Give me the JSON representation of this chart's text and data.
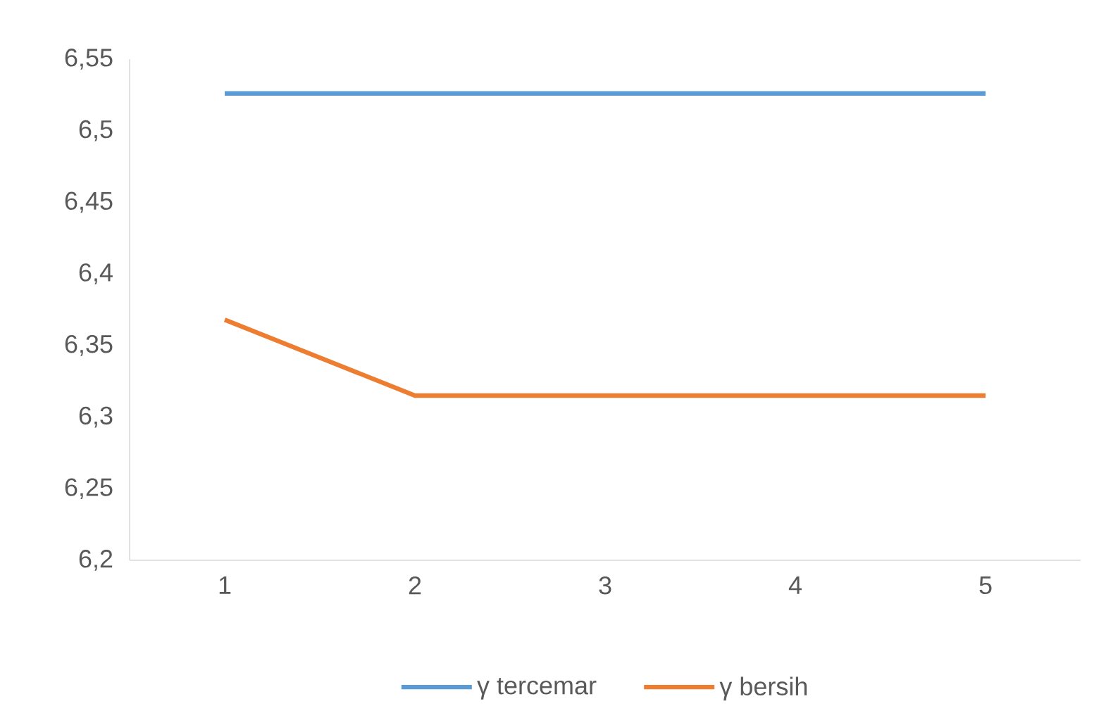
{
  "chart_data": {
    "type": "line",
    "categories": [
      "1",
      "2",
      "3",
      "4",
      "5"
    ],
    "series": [
      {
        "name": "γ tercemar",
        "color": "#5b9bd5",
        "values": [
          6.526,
          6.526,
          6.526,
          6.526,
          6.526
        ]
      },
      {
        "name": "γ bersih",
        "color": "#ed7d31",
        "values": [
          6.368,
          6.315,
          6.315,
          6.315,
          6.315
        ]
      }
    ],
    "ylim": [
      6.2,
      6.55
    ],
    "yticks": [
      {
        "value": 6.2,
        "label": "6,2"
      },
      {
        "value": 6.25,
        "label": "6,25"
      },
      {
        "value": 6.3,
        "label": "6,3"
      },
      {
        "value": 6.35,
        "label": "6,35"
      },
      {
        "value": 6.4,
        "label": "6,4"
      },
      {
        "value": 6.45,
        "label": "6,45"
      },
      {
        "value": 6.5,
        "label": "6,5"
      },
      {
        "value": 6.55,
        "label": "6,55"
      }
    ],
    "grid": false,
    "legend": "bottom",
    "marker": "none",
    "line_style": "solid"
  }
}
